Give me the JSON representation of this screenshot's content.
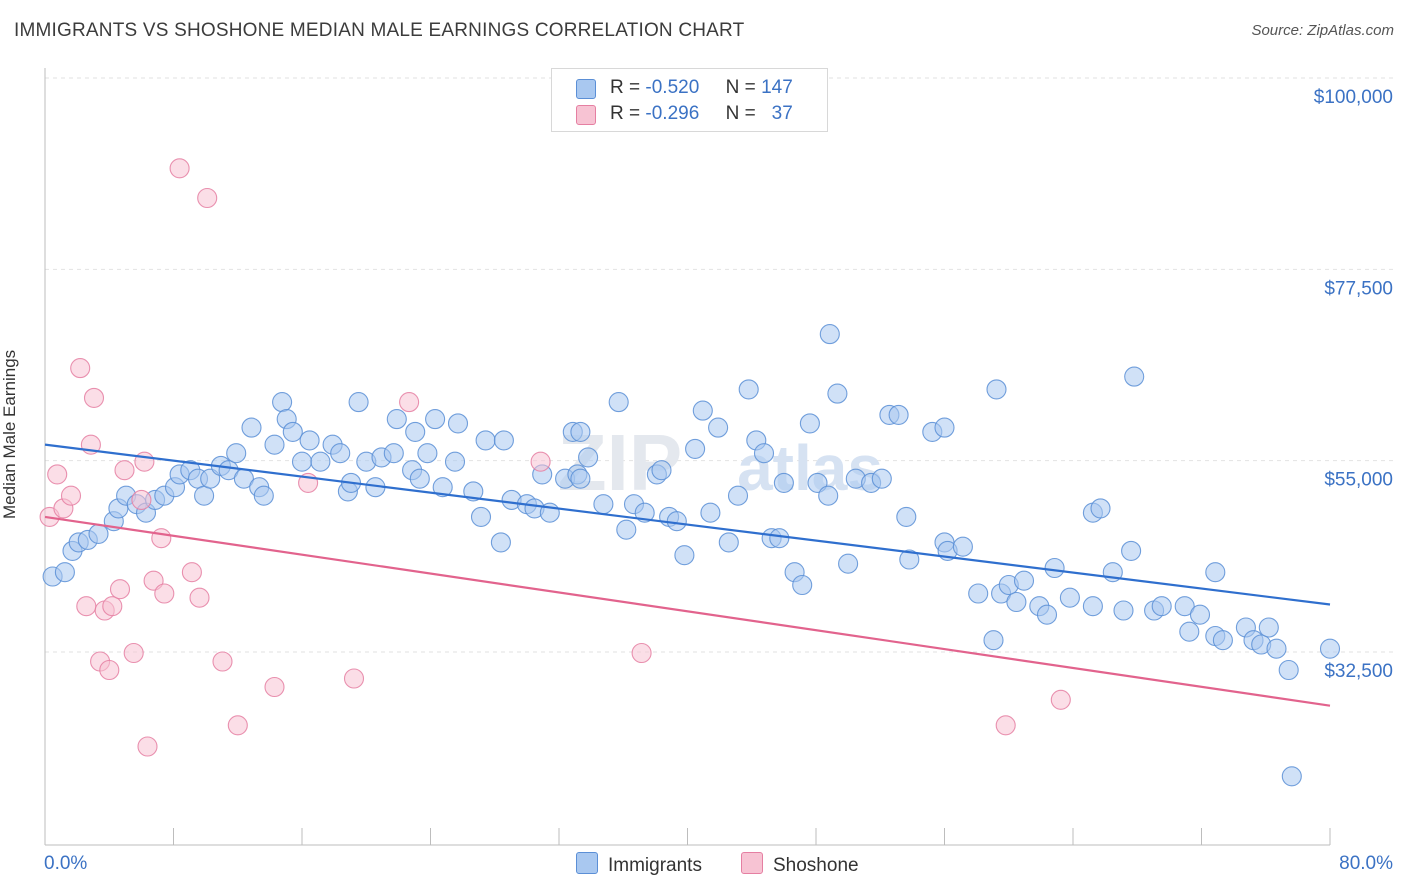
{
  "title": "IMMIGRANTS VS SHOSHONE MEDIAN MALE EARNINGS CORRELATION CHART",
  "source": "Source: ZipAtlas.com",
  "legend": {
    "rows": [
      {
        "r_label": "R =",
        "r_value": "-0.520",
        "n_label": "N =",
        "n_value": "147",
        "color": "#a9c8f0",
        "border": "#5b8fd6"
      },
      {
        "r_label": "R =",
        "r_value": "-0.296",
        "n_label": "N =",
        "n_value": "37",
        "color": "#f7c3d3",
        "border": "#e57fa2"
      }
    ]
  },
  "bottom_legend": {
    "immigrants": "Immigrants",
    "shoshone": "Shoshone"
  },
  "chart_data": {
    "type": "scatter",
    "ylabel": "Median Male Earnings",
    "xlim": [
      0,
      80
    ],
    "ylim": [
      15000,
      105000
    ],
    "x_tick_labels": {
      "left": "0.0%",
      "right": "80.0%"
    },
    "y_ticks": [
      {
        "value": 100000,
        "label": "$100,000"
      },
      {
        "value": 77500,
        "label": "$77,500"
      },
      {
        "value": 55000,
        "label": "$55,000"
      },
      {
        "value": 32500,
        "label": "$32,500"
      }
    ],
    "watermark": "ZIPatlas",
    "series": [
      {
        "name": "Immigrants",
        "color": "#5b8fd6",
        "fill": "#a9c8f0",
        "trend": {
          "x": [
            0,
            80
          ],
          "y": [
            59000,
            40200
          ],
          "color": "#2f6fce"
        },
        "points": [
          [
            0.5,
            43.5
          ],
          [
            1.3,
            44
          ],
          [
            1.8,
            46.5
          ],
          [
            2.2,
            47.5
          ],
          [
            2.8,
            47.8
          ],
          [
            3.5,
            48.5
          ],
          [
            4.5,
            50
          ],
          [
            4.8,
            51.5
          ],
          [
            5.3,
            53
          ],
          [
            6,
            52
          ],
          [
            6.6,
            51
          ],
          [
            7.2,
            52.5
          ],
          [
            7.8,
            53
          ],
          [
            8.5,
            54
          ],
          [
            8.8,
            55.5
          ],
          [
            9.5,
            56
          ],
          [
            10,
            55
          ],
          [
            10.4,
            53
          ],
          [
            10.8,
            55
          ],
          [
            11.5,
            56.5
          ],
          [
            12,
            56
          ],
          [
            12.5,
            58
          ],
          [
            13,
            55
          ],
          [
            13.5,
            61
          ],
          [
            14,
            54
          ],
          [
            14.3,
            53
          ],
          [
            15,
            59
          ],
          [
            15.5,
            64
          ],
          [
            15.8,
            62
          ],
          [
            16.2,
            60.5
          ],
          [
            16.8,
            57
          ],
          [
            17.3,
            59.5
          ],
          [
            18,
            57
          ],
          [
            18.8,
            59
          ],
          [
            19.3,
            58
          ],
          [
            19.8,
            53.5
          ],
          [
            20,
            54.5
          ],
          [
            20.5,
            64
          ],
          [
            21,
            57
          ],
          [
            21.6,
            54
          ],
          [
            22,
            57.5
          ],
          [
            22.8,
            58
          ],
          [
            23,
            62
          ],
          [
            24,
            56
          ],
          [
            24.2,
            60.5
          ],
          [
            24.5,
            55
          ],
          [
            25,
            58
          ],
          [
            25.5,
            62
          ],
          [
            26,
            54
          ],
          [
            26.8,
            57
          ],
          [
            27,
            61.5
          ],
          [
            28,
            53.5
          ],
          [
            28.5,
            50.5
          ],
          [
            28.8,
            59.5
          ],
          [
            29.8,
            47.5
          ],
          [
            30,
            59.5
          ],
          [
            30.5,
            52.5
          ],
          [
            31.5,
            52
          ],
          [
            32,
            51.5
          ],
          [
            32.5,
            55.5
          ],
          [
            33,
            51
          ],
          [
            34,
            55
          ],
          [
            34.5,
            60.5
          ],
          [
            34.8,
            55.5
          ],
          [
            35,
            55
          ],
          [
            35,
            60.5
          ],
          [
            35.5,
            57.5
          ],
          [
            36.5,
            52
          ],
          [
            37.5,
            64
          ],
          [
            38,
            49
          ],
          [
            38.5,
            52
          ],
          [
            39.2,
            51
          ],
          [
            40,
            55.5
          ],
          [
            40.3,
            56
          ],
          [
            40.8,
            50.5
          ],
          [
            41.3,
            50
          ],
          [
            41.8,
            46
          ],
          [
            42.5,
            58.5
          ],
          [
            43,
            63
          ],
          [
            43.5,
            51
          ],
          [
            44,
            61
          ],
          [
            44.7,
            47.5
          ],
          [
            45.3,
            53
          ],
          [
            46,
            65.5
          ],
          [
            46.5,
            59.5
          ],
          [
            47,
            58
          ],
          [
            47.5,
            48
          ],
          [
            48,
            48
          ],
          [
            48.3,
            54.5
          ],
          [
            49,
            44
          ],
          [
            49.5,
            42.5
          ],
          [
            50,
            61.5
          ],
          [
            50.5,
            54.5
          ],
          [
            51.2,
            53
          ],
          [
            51.3,
            72
          ],
          [
            51.8,
            65
          ],
          [
            52.5,
            45
          ],
          [
            53,
            55
          ],
          [
            54,
            54.5
          ],
          [
            54.7,
            55
          ],
          [
            55.2,
            62.5
          ],
          [
            55.8,
            62.5
          ],
          [
            56.3,
            50.5
          ],
          [
            56.5,
            45.5
          ],
          [
            58,
            60.5
          ],
          [
            58.8,
            61
          ],
          [
            58.8,
            47.5
          ],
          [
            59,
            46.5
          ],
          [
            60,
            47
          ],
          [
            61,
            41.5
          ],
          [
            62,
            36
          ],
          [
            62.2,
            65.5
          ],
          [
            62.5,
            41.5
          ],
          [
            63,
            42.5
          ],
          [
            63.5,
            40.5
          ],
          [
            64,
            43
          ],
          [
            65,
            40
          ],
          [
            65.5,
            39
          ],
          [
            66,
            44.5
          ],
          [
            67,
            41
          ],
          [
            68.5,
            51
          ],
          [
            68.5,
            40
          ],
          [
            69,
            51.5
          ],
          [
            69.8,
            44
          ],
          [
            70.5,
            39.5
          ],
          [
            71,
            46.5
          ],
          [
            71.2,
            67
          ],
          [
            72.5,
            39.5
          ],
          [
            73,
            40
          ],
          [
            74.5,
            40
          ],
          [
            74.8,
            37
          ],
          [
            75.5,
            39
          ],
          [
            76.5,
            44
          ],
          [
            76.5,
            36.5
          ],
          [
            77,
            36
          ],
          [
            78.5,
            37.5
          ],
          [
            79,
            36
          ],
          [
            79.5,
            35.5
          ],
          [
            80,
            37.5
          ],
          [
            80.5,
            35
          ],
          [
            81.3,
            32.5
          ],
          [
            81.5,
            20
          ],
          [
            84,
            35
          ]
        ]
      },
      {
        "name": "Shoshone",
        "color": "#e57fa2",
        "fill": "#f7c3d3",
        "trend": {
          "x": [
            0,
            80
          ],
          "y": [
            50500,
            28300
          ],
          "color": "#e2638d"
        },
        "points": [
          [
            0.3,
            50.5
          ],
          [
            0.8,
            55.5
          ],
          [
            1.2,
            51.5
          ],
          [
            1.7,
            53
          ],
          [
            2.3,
            68
          ],
          [
            2.7,
            40
          ],
          [
            3,
            59
          ],
          [
            3.2,
            64.5
          ],
          [
            3.6,
            33.5
          ],
          [
            3.9,
            39.5
          ],
          [
            4.2,
            32.5
          ],
          [
            4.4,
            40
          ],
          [
            4.9,
            42
          ],
          [
            5.2,
            56
          ],
          [
            5.8,
            34.5
          ],
          [
            6.3,
            52.5
          ],
          [
            6.5,
            57
          ],
          [
            6.7,
            23.5
          ],
          [
            7.1,
            43
          ],
          [
            7.6,
            48
          ],
          [
            7.8,
            41.5
          ],
          [
            8.8,
            91.5
          ],
          [
            9.6,
            44
          ],
          [
            10.1,
            41
          ],
          [
            10.6,
            88
          ],
          [
            11.6,
            33.5
          ],
          [
            12.6,
            26
          ],
          [
            15,
            30.5
          ],
          [
            17.2,
            54.5
          ],
          [
            20.2,
            31.5
          ],
          [
            23.8,
            64
          ],
          [
            32.4,
            57
          ],
          [
            39,
            34.5
          ],
          [
            62.8,
            26
          ],
          [
            66.4,
            29
          ]
        ]
      }
    ]
  }
}
